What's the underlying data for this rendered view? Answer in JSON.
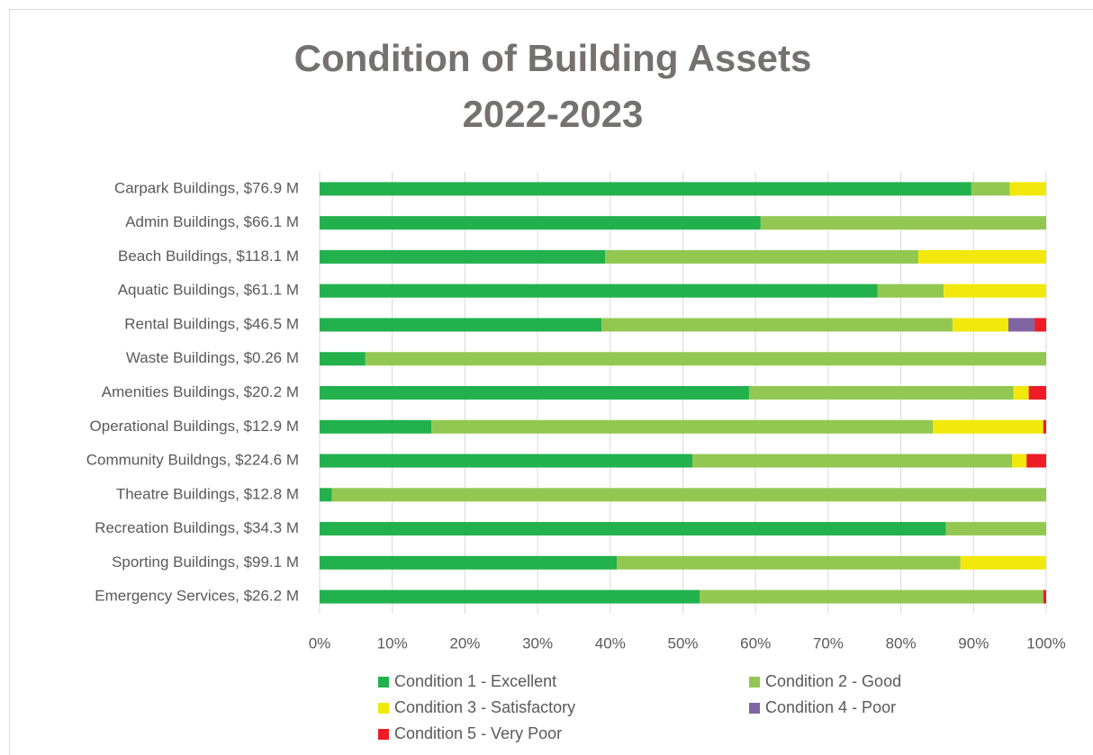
{
  "chart_data": {
    "type": "stacked_bar_horizontal",
    "title": [
      "Condition of Building Assets",
      "2022-2023"
    ],
    "categories": [
      "Carpark Buildings, $76.9 M",
      "Admin Buildings, $66.1 M",
      "Beach Buildings, $118.1 M",
      "Aquatic Buildings, $61.1 M",
      "Rental Buildings, $46.5 M",
      "Waste Buildings, $0.26 M",
      "Amenities Buildings, $20.2 M",
      "Operational Buildings, $12.9 M",
      "Community Buildngs, $224.6 M",
      "Theatre Buildings, $12.8 M",
      "Recreation Buildings, $34.3 M",
      "Sporting Buildings, $99.1 M",
      "Emergency Services, $26.2 M"
    ],
    "series": [
      {
        "name": "Condition 1 - Excellent",
        "color": "#22b14c",
        "values": [
          89.7,
          60.7,
          39.3,
          76.8,
          38.8,
          6.3,
          59.1,
          15.4,
          51.3,
          1.7,
          86.2,
          40.9,
          52.3
        ]
      },
      {
        "name": "Condition 2 - Good",
        "color": "#92c851",
        "values": [
          5.3,
          39.3,
          43.1,
          9.1,
          48.3,
          93.7,
          36.4,
          69.0,
          44.0,
          98.3,
          13.8,
          47.3,
          47.3
        ]
      },
      {
        "name": "Condition 3 - Satisfactory",
        "color": "#f2e80c",
        "values": [
          5.0,
          0,
          17.6,
          14.1,
          7.7,
          0,
          2.1,
          15.2,
          2.0,
          0,
          0,
          11.8,
          0
        ]
      },
      {
        "name": "Condition 4 - Poor",
        "color": "#8064a2",
        "values": [
          0,
          0,
          0,
          0,
          3.6,
          0,
          0,
          0,
          0,
          0,
          0,
          0,
          0
        ]
      },
      {
        "name": "Condition 5 - Very Poor",
        "color": "#ee1c25",
        "values": [
          0,
          0,
          0,
          0,
          1.6,
          0,
          2.4,
          0.4,
          2.7,
          0,
          0,
          0,
          0.4
        ]
      }
    ],
    "xlim": [
      0,
      100
    ],
    "xticks": [
      {
        "value": 0,
        "label": "0%"
      },
      {
        "value": 10,
        "label": "10%"
      },
      {
        "value": 20,
        "label": "20%"
      },
      {
        "value": 30,
        "label": "30%"
      },
      {
        "value": 40,
        "label": "40%"
      },
      {
        "value": 50,
        "label": "50%"
      },
      {
        "value": 60,
        "label": "60%"
      },
      {
        "value": 70,
        "label": "70%"
      },
      {
        "value": 80,
        "label": "80%"
      },
      {
        "value": 90,
        "label": "90%"
      },
      {
        "value": 100,
        "label": "100%"
      }
    ],
    "grid": true,
    "legend": "bottom"
  }
}
